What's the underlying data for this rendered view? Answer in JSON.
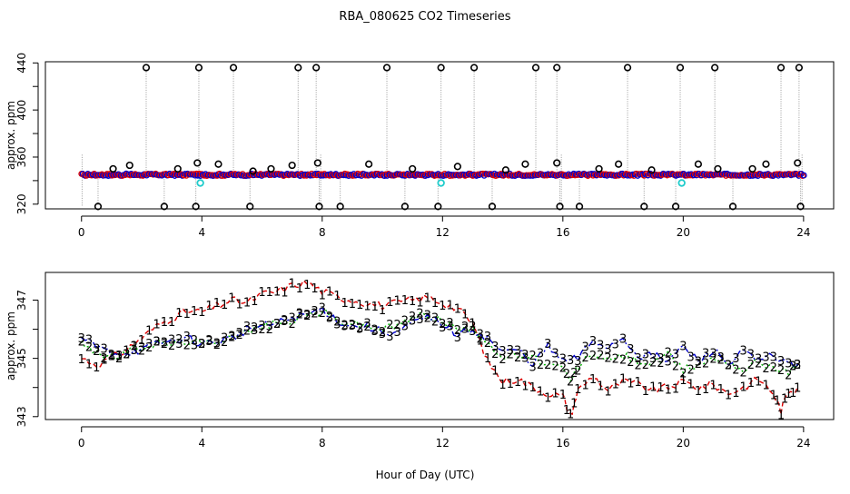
{
  "title": "RBA_080625  CO2 Timeseries",
  "xlabel": "Hour of Day (UTC)",
  "colors": {
    "series1": "#dd0000",
    "series2": "#00b000",
    "series3": "#0000cc",
    "flag": "#000000",
    "low": "#22cccc",
    "gray": "#999999"
  },
  "chart_data": [
    {
      "type": "scatter",
      "title": "RBA_080625  CO2 Timeseries",
      "ylabel": "approx. ppm",
      "xlim": [
        -1.2,
        25.0
      ],
      "ylim": [
        316,
        441
      ],
      "xticks": [
        0,
        4,
        8,
        12,
        16,
        20,
        24
      ],
      "xtick_labels": [
        "0",
        "4",
        "8",
        "12",
        "16",
        "20",
        "24"
      ],
      "yticks": [
        320,
        360,
        400,
        440
      ],
      "ytick_labels": [
        "320",
        "360",
        "400",
        "440"
      ],
      "baseline_ppm": 345,
      "baseline_note": "dense band of blue/red points near 345 ppm spanning hours 0-24",
      "spike_high": [
        2.15,
        3.9,
        5.05,
        7.2,
        7.8,
        10.15,
        11.95,
        13.05,
        15.1,
        15.8,
        18.15,
        19.9,
        21.05,
        23.25,
        23.85
      ],
      "spike_high_value": 436,
      "spike_low": [
        0.55,
        2.75,
        3.8,
        5.6,
        7.9,
        8.6,
        10.75,
        11.85,
        13.65,
        15.9,
        16.55,
        18.7,
        19.75,
        21.65,
        23.9
      ],
      "spike_low_value": 318,
      "low_markers": [
        [
          3.95,
          338
        ],
        [
          11.95,
          338
        ],
        [
          19.95,
          338
        ]
      ],
      "flag_points": [
        [
          1.05,
          350
        ],
        [
          1.6,
          353
        ],
        [
          3.2,
          350
        ],
        [
          3.85,
          355
        ],
        [
          4.55,
          354
        ],
        [
          5.7,
          348
        ],
        [
          6.3,
          350
        ],
        [
          7.0,
          353
        ],
        [
          7.85,
          355
        ],
        [
          9.55,
          354
        ],
        [
          11.0,
          350
        ],
        [
          12.5,
          352
        ],
        [
          14.1,
          349
        ],
        [
          14.75,
          354
        ],
        [
          15.8,
          355
        ],
        [
          17.2,
          350
        ],
        [
          17.85,
          354
        ],
        [
          18.95,
          349
        ],
        [
          20.5,
          354
        ],
        [
          21.15,
          350
        ],
        [
          22.3,
          350
        ],
        [
          22.75,
          354
        ],
        [
          23.8,
          355
        ]
      ]
    },
    {
      "type": "line",
      "ylabel": "approx. ppm",
      "xlim": [
        -1.2,
        25.0
      ],
      "ylim": [
        342.9,
        347.95
      ],
      "xticks": [
        0,
        4,
        8,
        12,
        16,
        20,
        24
      ],
      "xtick_labels": [
        "0",
        "4",
        "8",
        "12",
        "16",
        "20",
        "24"
      ],
      "yticks": [
        343,
        345,
        347
      ],
      "ytick_labels": [
        "343",
        "345",
        "347"
      ],
      "series": [
        {
          "name": "1",
          "label": "1",
          "color": "#dd0000",
          "x": [
            0,
            0.5,
            1,
            1.5,
            2,
            2.5,
            3,
            3.5,
            4,
            4.5,
            5,
            5.5,
            6,
            6.5,
            7,
            7.5,
            8,
            8.5,
            9,
            9.5,
            10,
            10.5,
            11,
            11.5,
            12,
            12.5,
            13,
            13.5,
            14,
            14.5,
            15,
            15.5,
            16,
            16.25,
            16.5,
            17,
            17.5,
            18,
            18.5,
            19,
            19.5,
            20,
            20.5,
            21,
            21.5,
            22,
            22.5,
            23,
            23.25,
            23.5,
            23.8
          ],
          "y": [
            345.0,
            344.8,
            345.0,
            345.3,
            345.7,
            346.1,
            346.4,
            346.6,
            346.6,
            346.8,
            347.0,
            346.9,
            347.2,
            347.3,
            347.5,
            347.6,
            347.3,
            347.1,
            347.0,
            346.9,
            346.8,
            346.9,
            347.0,
            347.1,
            346.9,
            346.7,
            346.2,
            344.9,
            344.2,
            344.3,
            344.0,
            343.8,
            343.7,
            343.0,
            343.9,
            344.4,
            343.9,
            344.2,
            344.1,
            343.9,
            344.0,
            344.2,
            344.0,
            344.1,
            343.8,
            344.0,
            344.3,
            343.8,
            343.2,
            343.9,
            344.0
          ]
        },
        {
          "name": "2",
          "label": "2",
          "color": "#00b000",
          "x": [
            0,
            0.5,
            1,
            1.5,
            2,
            2.5,
            3,
            3.5,
            4,
            4.5,
            5,
            5.5,
            6,
            6.5,
            7,
            7.5,
            8,
            8.5,
            9,
            9.5,
            10,
            10.5,
            11,
            11.5,
            12,
            12.5,
            13,
            13.5,
            14,
            14.5,
            15,
            15.5,
            16,
            16.25,
            16.5,
            17,
            17.5,
            18,
            18.5,
            19,
            19.5,
            20,
            20.5,
            21,
            21.5,
            22,
            22.5,
            23,
            23.5,
            23.8
          ],
          "y": [
            345.6,
            345.2,
            345.0,
            345.2,
            345.4,
            345.5,
            345.5,
            345.6,
            345.5,
            345.6,
            345.8,
            345.9,
            346.1,
            346.2,
            346.3,
            346.5,
            346.6,
            346.3,
            346.2,
            346.1,
            346.0,
            346.1,
            346.4,
            346.5,
            346.3,
            346.0,
            346.0,
            345.6,
            345.0,
            345.1,
            345.0,
            344.8,
            344.6,
            344.2,
            344.7,
            345.2,
            344.9,
            345.1,
            344.9,
            344.8,
            345.1,
            344.6,
            344.8,
            345.0,
            344.9,
            344.6,
            344.9,
            344.7,
            344.5,
            344.8
          ]
        },
        {
          "name": "3",
          "label": "3",
          "color": "#0000cc",
          "x": [
            0,
            0.5,
            1,
            1.5,
            2,
            2.5,
            3,
            3.5,
            4,
            4.5,
            5,
            5.5,
            6,
            6.5,
            7,
            7.5,
            8,
            8.5,
            9,
            9.5,
            10,
            10.5,
            11,
            11.5,
            12,
            12.5,
            13,
            13.5,
            14,
            14.5,
            15,
            15.5,
            16,
            16.5,
            17,
            17.5,
            18,
            18.5,
            19,
            19.5,
            20,
            20.5,
            21,
            21.5,
            22,
            22.5,
            23,
            23.5,
            23.8
          ],
          "y": [
            345.7,
            345.4,
            345.2,
            345.2,
            345.3,
            345.5,
            345.6,
            345.7,
            345.5,
            345.6,
            345.7,
            346.0,
            346.1,
            346.2,
            346.4,
            346.5,
            346.7,
            346.3,
            346.1,
            346.1,
            345.9,
            345.9,
            346.2,
            346.4,
            346.2,
            345.8,
            346.0,
            345.7,
            345.2,
            345.3,
            344.8,
            345.4,
            344.9,
            345.0,
            345.6,
            345.4,
            345.7,
            345.1,
            345.1,
            344.9,
            345.4,
            344.9,
            345.3,
            344.8,
            345.2,
            344.9,
            345.1,
            344.8,
            344.8
          ]
        }
      ]
    }
  ]
}
